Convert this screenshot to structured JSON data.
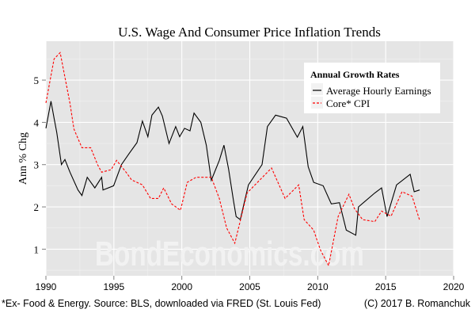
{
  "chart_data": {
    "type": "line",
    "title": "U.S. Wage And Consumer Price Inflation Trends",
    "xlabel": "",
    "ylabel": "Ann % Chg",
    "xlim": [
      1990,
      2020
    ],
    "ylim": [
      0.37,
      5.92
    ],
    "x_ticks": [
      1990,
      1995,
      2000,
      2005,
      2010,
      2015,
      2020
    ],
    "y_ticks": [
      1,
      2,
      3,
      4,
      5
    ],
    "grid": true,
    "background": "#e5e5e5",
    "legend": {
      "title": "Annual Growth Rates",
      "placement": "top-right"
    },
    "series": [
      {
        "name": "Average Hourly Earnings",
        "color": "#000000",
        "style": "solid",
        "points": [
          [
            1990.0,
            3.86
          ],
          [
            1990.37,
            4.5
          ],
          [
            1990.6,
            4.1
          ],
          [
            1990.8,
            3.76
          ],
          [
            1991.14,
            3.0
          ],
          [
            1991.4,
            3.12
          ],
          [
            1991.77,
            2.82
          ],
          [
            1992.36,
            2.4
          ],
          [
            1992.65,
            2.27
          ],
          [
            1993.04,
            2.7
          ],
          [
            1993.6,
            2.45
          ],
          [
            1994.1,
            2.7
          ],
          [
            1994.2,
            2.4
          ],
          [
            1994.98,
            2.5
          ],
          [
            1995.56,
            3.0
          ],
          [
            1996.14,
            3.27
          ],
          [
            1996.7,
            3.52
          ],
          [
            1997.1,
            4.03
          ],
          [
            1997.5,
            3.66
          ],
          [
            1997.8,
            4.17
          ],
          [
            1998.28,
            4.36
          ],
          [
            1998.57,
            4.15
          ],
          [
            1999.06,
            3.5
          ],
          [
            1999.55,
            3.9
          ],
          [
            1999.84,
            3.66
          ],
          [
            2000.2,
            3.86
          ],
          [
            2000.6,
            3.8
          ],
          [
            2000.9,
            4.22
          ],
          [
            2001.4,
            4.0
          ],
          [
            2001.8,
            3.46
          ],
          [
            2002.17,
            2.63
          ],
          [
            2002.76,
            3.1
          ],
          [
            2003.1,
            3.46
          ],
          [
            2003.44,
            2.9
          ],
          [
            2003.8,
            2.15
          ],
          [
            2004.0,
            1.77
          ],
          [
            2004.3,
            1.7
          ],
          [
            2004.9,
            2.52
          ],
          [
            2005.9,
            3.0
          ],
          [
            2006.3,
            3.9
          ],
          [
            2006.9,
            4.17
          ],
          [
            2007.7,
            4.1
          ],
          [
            2008.5,
            3.65
          ],
          [
            2008.9,
            3.9
          ],
          [
            2009.3,
            2.95
          ],
          [
            2009.7,
            2.58
          ],
          [
            2010.4,
            2.5
          ],
          [
            2011.0,
            2.07
          ],
          [
            2011.6,
            2.1
          ],
          [
            2012.1,
            1.45
          ],
          [
            2012.8,
            1.33
          ],
          [
            2013.0,
            2.0
          ],
          [
            2014.2,
            2.33
          ],
          [
            2014.7,
            2.45
          ],
          [
            2015.1,
            1.77
          ],
          [
            2015.8,
            2.52
          ],
          [
            2016.8,
            2.77
          ],
          [
            2017.1,
            2.36
          ],
          [
            2017.5,
            2.4
          ]
        ]
      },
      {
        "name": "Core* CPI",
        "color": "#ff0000",
        "style": "dashed",
        "points": [
          [
            1990.0,
            4.46
          ],
          [
            1990.6,
            5.5
          ],
          [
            1991.05,
            5.65
          ],
          [
            1991.77,
            4.45
          ],
          [
            1992.06,
            3.84
          ],
          [
            1992.65,
            3.4
          ],
          [
            1993.3,
            3.4
          ],
          [
            1993.8,
            3.0
          ],
          [
            1994.1,
            2.82
          ],
          [
            1994.8,
            2.88
          ],
          [
            1995.2,
            3.1
          ],
          [
            1995.95,
            2.8
          ],
          [
            1996.3,
            2.64
          ],
          [
            1997.1,
            2.52
          ],
          [
            1997.7,
            2.2
          ],
          [
            1998.28,
            2.2
          ],
          [
            1998.67,
            2.45
          ],
          [
            1999.25,
            2.07
          ],
          [
            1999.9,
            1.92
          ],
          [
            2000.4,
            2.58
          ],
          [
            2001.05,
            2.7
          ],
          [
            2002.17,
            2.7
          ],
          [
            2002.76,
            2.2
          ],
          [
            2003.3,
            1.5
          ],
          [
            2003.9,
            1.14
          ],
          [
            2004.8,
            2.33
          ],
          [
            2006.6,
            2.92
          ],
          [
            2007.6,
            2.2
          ],
          [
            2008.6,
            2.52
          ],
          [
            2009.0,
            1.7
          ],
          [
            2009.7,
            1.45
          ],
          [
            2010.2,
            0.98
          ],
          [
            2010.8,
            0.61
          ],
          [
            2011.5,
            1.77
          ],
          [
            2012.3,
            2.3
          ],
          [
            2012.7,
            1.96
          ],
          [
            2013.3,
            1.7
          ],
          [
            2014.2,
            1.65
          ],
          [
            2014.7,
            1.9
          ],
          [
            2015.4,
            1.78
          ],
          [
            2016.2,
            2.36
          ],
          [
            2016.95,
            2.25
          ],
          [
            2017.5,
            1.68
          ]
        ]
      }
    ]
  },
  "watermark": "BondEconomics.com",
  "footer": {
    "left": "*Ex- Food & Energy. Source: BLS, downloaded via FRED (St. Louis Fed)",
    "right": "(C) 2017 B. Romanchuk"
  }
}
